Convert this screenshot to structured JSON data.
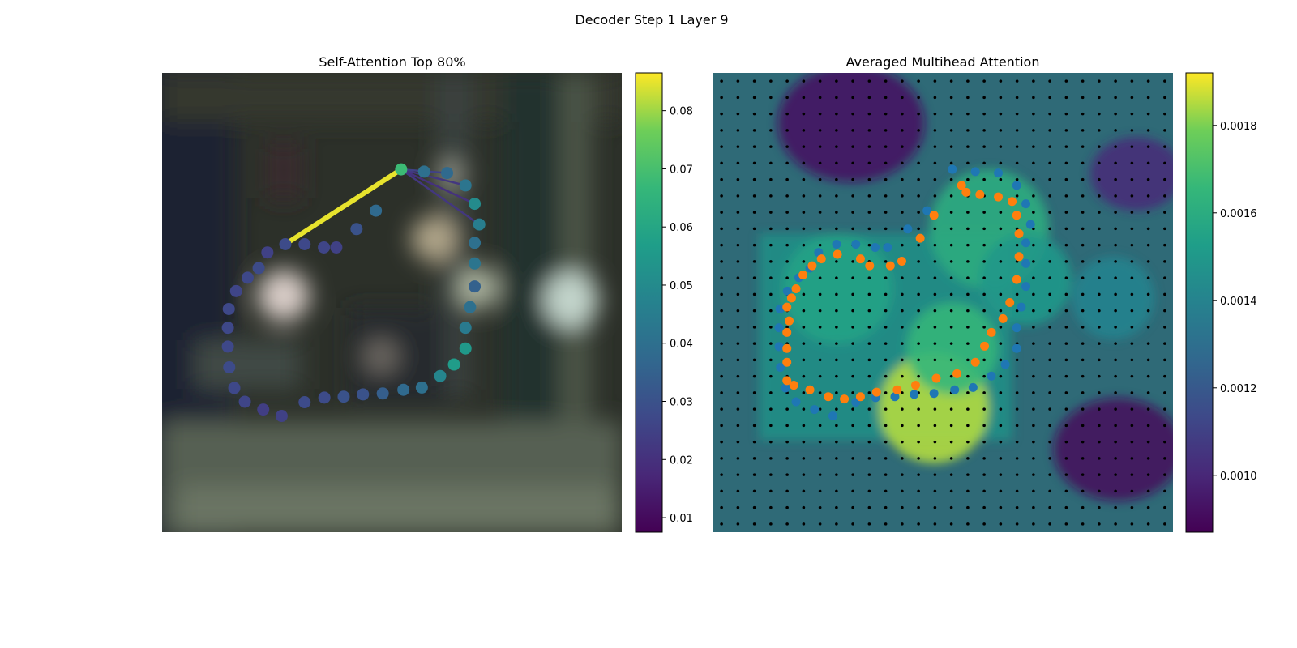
{
  "figure": {
    "suptitle": "Decoder Step 1 Layer 9"
  },
  "chart_data": [
    {
      "type": "scatter",
      "title": "Self-Attention Top 80%",
      "background": "blurred photograph (dark interior scene with circular fixtures)",
      "colormap": "viridis",
      "colorbar": {
        "ticks": [
          "0.01",
          "0.02",
          "0.03",
          "0.04",
          "0.05",
          "0.06",
          "0.07",
          "0.08"
        ],
        "range": [
          0.0075,
          0.0865
        ]
      },
      "points": [
        {
          "x": 0.52,
          "y": 0.21,
          "v": 0.068
        },
        {
          "x": 0.57,
          "y": 0.215,
          "v": 0.04
        },
        {
          "x": 0.62,
          "y": 0.218,
          "v": 0.038
        },
        {
          "x": 0.66,
          "y": 0.245,
          "v": 0.042
        },
        {
          "x": 0.68,
          "y": 0.285,
          "v": 0.05
        },
        {
          "x": 0.69,
          "y": 0.33,
          "v": 0.045
        },
        {
          "x": 0.68,
          "y": 0.37,
          "v": 0.04
        },
        {
          "x": 0.68,
          "y": 0.415,
          "v": 0.042
        },
        {
          "x": 0.68,
          "y": 0.465,
          "v": 0.035
        },
        {
          "x": 0.67,
          "y": 0.51,
          "v": 0.04
        },
        {
          "x": 0.66,
          "y": 0.555,
          "v": 0.044
        },
        {
          "x": 0.66,
          "y": 0.6,
          "v": 0.055
        },
        {
          "x": 0.635,
          "y": 0.635,
          "v": 0.056
        },
        {
          "x": 0.605,
          "y": 0.66,
          "v": 0.048
        },
        {
          "x": 0.565,
          "y": 0.685,
          "v": 0.04
        },
        {
          "x": 0.525,
          "y": 0.69,
          "v": 0.038
        },
        {
          "x": 0.48,
          "y": 0.698,
          "v": 0.034
        },
        {
          "x": 0.437,
          "y": 0.7,
          "v": 0.03
        },
        {
          "x": 0.395,
          "y": 0.705,
          "v": 0.03
        },
        {
          "x": 0.353,
          "y": 0.707,
          "v": 0.028
        },
        {
          "x": 0.31,
          "y": 0.717,
          "v": 0.028
        },
        {
          "x": 0.26,
          "y": 0.747,
          "v": 0.025
        },
        {
          "x": 0.22,
          "y": 0.733,
          "v": 0.024
        },
        {
          "x": 0.18,
          "y": 0.716,
          "v": 0.026
        },
        {
          "x": 0.157,
          "y": 0.686,
          "v": 0.027
        },
        {
          "x": 0.146,
          "y": 0.641,
          "v": 0.028
        },
        {
          "x": 0.143,
          "y": 0.596,
          "v": 0.027
        },
        {
          "x": 0.143,
          "y": 0.555,
          "v": 0.027
        },
        {
          "x": 0.145,
          "y": 0.514,
          "v": 0.027
        },
        {
          "x": 0.161,
          "y": 0.475,
          "v": 0.026
        },
        {
          "x": 0.186,
          "y": 0.446,
          "v": 0.027
        },
        {
          "x": 0.21,
          "y": 0.425,
          "v": 0.028
        },
        {
          "x": 0.229,
          "y": 0.391,
          "v": 0.025
        },
        {
          "x": 0.268,
          "y": 0.373,
          "v": 0.028
        },
        {
          "x": 0.31,
          "y": 0.373,
          "v": 0.027
        },
        {
          "x": 0.352,
          "y": 0.38,
          "v": 0.026
        },
        {
          "x": 0.379,
          "y": 0.38,
          "v": 0.025
        },
        {
          "x": 0.423,
          "y": 0.34,
          "v": 0.03
        },
        {
          "x": 0.465,
          "y": 0.3,
          "v": 0.038
        }
      ],
      "query_point": 0,
      "attention_lines": [
        {
          "to": 1,
          "v": 0.085
        },
        {
          "to": 2,
          "v": 0.025
        },
        {
          "to": 3,
          "v": 0.022
        },
        {
          "to": 4,
          "v": 0.02
        },
        {
          "to": 5,
          "v": 0.022
        }
      ]
    },
    {
      "type": "heatmap",
      "title": "Averaged Multihead Attention",
      "colormap": "viridis",
      "colorbar": {
        "ticks": [
          "0.0010",
          "0.0012",
          "0.0014",
          "0.0016",
          "0.0018"
        ],
        "range": [
          0.00087,
          0.00192
        ]
      },
      "grid_shape": [
        28,
        28
      ],
      "hotspots": [
        {
          "x": 0.48,
          "y": 0.73,
          "r": 0.12,
          "v": 0.00185
        },
        {
          "x": 0.52,
          "y": 0.6,
          "r": 0.1,
          "v": 0.00165
        },
        {
          "x": 0.27,
          "y": 0.47,
          "r": 0.12,
          "v": 0.00155
        },
        {
          "x": 0.6,
          "y": 0.34,
          "r": 0.13,
          "v": 0.0016
        },
        {
          "x": 0.68,
          "y": 0.45,
          "r": 0.1,
          "v": 0.0015
        },
        {
          "x": 0.87,
          "y": 0.49,
          "r": 0.09,
          "v": 0.0014
        }
      ],
      "coldspots": [
        {
          "x": 0.3,
          "y": 0.11,
          "r": 0.16,
          "v": 0.00092
        },
        {
          "x": 0.88,
          "y": 0.82,
          "r": 0.14,
          "v": 0.0009
        },
        {
          "x": 0.92,
          "y": 0.22,
          "r": 0.1,
          "v": 0.001
        }
      ],
      "series": [
        {
          "color": "#1f77b4",
          "points": [
            [
              0.52,
              0.21
            ],
            [
              0.57,
              0.215
            ],
            [
              0.62,
              0.218
            ],
            [
              0.66,
              0.245
            ],
            [
              0.68,
              0.285
            ],
            [
              0.69,
              0.33
            ],
            [
              0.68,
              0.37
            ],
            [
              0.68,
              0.415
            ],
            [
              0.68,
              0.465
            ],
            [
              0.67,
              0.51
            ],
            [
              0.66,
              0.555
            ],
            [
              0.66,
              0.6
            ],
            [
              0.635,
              0.635
            ],
            [
              0.605,
              0.66
            ],
            [
              0.565,
              0.685
            ],
            [
              0.525,
              0.69
            ],
            [
              0.48,
              0.698
            ],
            [
              0.437,
              0.7
            ],
            [
              0.395,
              0.705
            ],
            [
              0.353,
              0.707
            ],
            [
              0.31,
              0.717
            ],
            [
              0.26,
              0.747
            ],
            [
              0.22,
              0.733
            ],
            [
              0.18,
              0.716
            ],
            [
              0.157,
              0.686
            ],
            [
              0.146,
              0.641
            ],
            [
              0.143,
              0.596
            ],
            [
              0.143,
              0.555
            ],
            [
              0.145,
              0.514
            ],
            [
              0.161,
              0.475
            ],
            [
              0.186,
              0.446
            ],
            [
              0.21,
              0.425
            ],
            [
              0.229,
              0.391
            ],
            [
              0.268,
              0.373
            ],
            [
              0.31,
              0.373
            ],
            [
              0.352,
              0.38
            ],
            [
              0.379,
              0.38
            ],
            [
              0.423,
              0.34
            ],
            [
              0.465,
              0.3
            ]
          ]
        },
        {
          "color": "#ff7f0e",
          "points": [
            [
              0.55,
              0.26
            ],
            [
              0.58,
              0.265
            ],
            [
              0.62,
              0.27
            ],
            [
              0.65,
              0.28
            ],
            [
              0.66,
              0.31
            ],
            [
              0.665,
              0.35
            ],
            [
              0.665,
              0.4
            ],
            [
              0.66,
              0.45
            ],
            [
              0.645,
              0.5
            ],
            [
              0.63,
              0.535
            ],
            [
              0.605,
              0.565
            ],
            [
              0.59,
              0.595
            ],
            [
              0.57,
              0.63
            ],
            [
              0.53,
              0.655
            ],
            [
              0.485,
              0.665
            ],
            [
              0.44,
              0.68
            ],
            [
              0.4,
              0.69
            ],
            [
              0.355,
              0.695
            ],
            [
              0.32,
              0.705
            ],
            [
              0.285,
              0.71
            ],
            [
              0.25,
              0.705
            ],
            [
              0.21,
              0.69
            ],
            [
              0.175,
              0.68
            ],
            [
              0.16,
              0.67
            ],
            [
              0.16,
              0.63
            ],
            [
              0.16,
              0.6
            ],
            [
              0.16,
              0.565
            ],
            [
              0.165,
              0.54
            ],
            [
              0.16,
              0.51
            ],
            [
              0.17,
              0.49
            ],
            [
              0.18,
              0.47
            ],
            [
              0.195,
              0.44
            ],
            [
              0.215,
              0.42
            ],
            [
              0.235,
              0.405
            ],
            [
              0.27,
              0.395
            ],
            [
              0.32,
              0.405
            ],
            [
              0.34,
              0.42
            ],
            [
              0.385,
              0.42
            ],
            [
              0.41,
              0.41
            ],
            [
              0.45,
              0.36
            ],
            [
              0.48,
              0.31
            ],
            [
              0.54,
              0.245
            ]
          ]
        }
      ]
    }
  ]
}
